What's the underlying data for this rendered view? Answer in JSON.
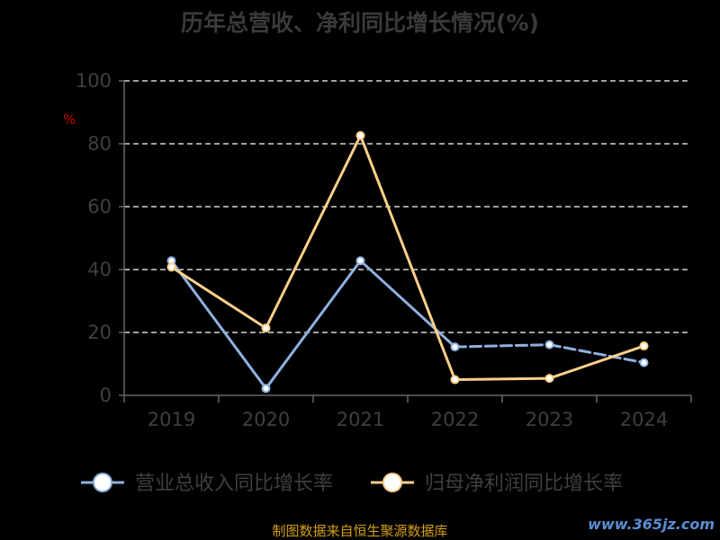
{
  "chart_data": {
    "type": "line",
    "title": "历年总营收、净利同比增长情况(%)",
    "ylabel": "%",
    "categories": [
      "2019",
      "2020",
      "2021",
      "2022",
      "2023",
      "2024"
    ],
    "ylim": [
      0,
      100
    ],
    "yticks": [
      0,
      20,
      40,
      60,
      80,
      100
    ],
    "grid": true,
    "legend_position": "bottom",
    "series": [
      {
        "name": "营业总收入同比增长率",
        "values": [
          42.8,
          2.2,
          42.8,
          15.4,
          16.1,
          10.4
        ],
        "color": "#8fb0e0",
        "dashed_segments": [
          3,
          4
        ]
      },
      {
        "name": "归母净利润同比增长率",
        "values": [
          40.8,
          21.4,
          82.6,
          5.0,
          5.4,
          15.7
        ],
        "color": "#ffcf8a"
      }
    ]
  },
  "footer": {
    "source": "制图数据来自恒生聚源数据库",
    "watermark": "www.365jz.com"
  },
  "colors": {
    "background": "#000000",
    "axis": "#666666",
    "grid": "#ffffff",
    "tick_label": "#3f3f3f",
    "ylabel": "#cc0000"
  }
}
